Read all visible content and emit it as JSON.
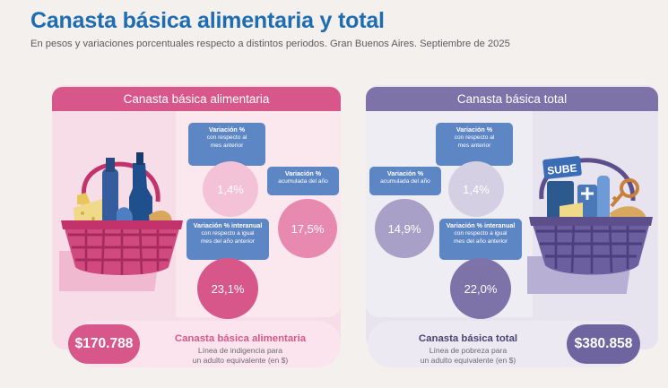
{
  "title": "Canasta básica alimentaria y total",
  "subtitle": "En pesos y variaciones porcentuales respecto a distintos periodos. Gran Buenos Aires. Septiembre de 2025",
  "colors": {
    "title_blue": "#1e6db3",
    "cba_pink": "#d7578a",
    "cba_light": "#f7dde8",
    "cbt_purple": "#7d73a8",
    "cbt_light": "#e7e3ef",
    "box_blue": "#5d86c4"
  },
  "cba": {
    "header": "Canasta básica alimentaria",
    "var_mensual": {
      "title": "Variación %",
      "sub_1": "con respecto al",
      "sub_2": "mes anterior",
      "value": "1,4%"
    },
    "var_acumulada": {
      "title": "Variación %",
      "sub_1": "acumulada del año",
      "value": "17,5%"
    },
    "var_interanual": {
      "title": "Variación % interanual",
      "sub_1": "con respecto a igual",
      "sub_2": "mes del año anterior",
      "value": "23,1%"
    },
    "amount": "$170.788",
    "bar_title": "Canasta básica alimentaria",
    "bar_desc_1": "Línea de indigencia para",
    "bar_desc_2": "un adulto equivalente (en $)"
  },
  "cbt": {
    "header": "Canasta básica total",
    "var_mensual": {
      "title": "Variación %",
      "sub_1": "con respecto al",
      "sub_2": "mes anterior",
      "value": "1,4%"
    },
    "var_acumulada": {
      "title": "Variación %",
      "sub_1": "acumulada del año",
      "value": "14,9%"
    },
    "var_interanual": {
      "title": "Variación % interanual",
      "sub_1": "con respecto a igual",
      "sub_2": "mes del año anterior",
      "value": "22,0%"
    },
    "amount": "$380.858",
    "bar_title": "Canasta básica total",
    "bar_desc_1": "Línea de pobreza para",
    "bar_desc_2": "un adulto equivalente (en $)",
    "card_text": "SUBE"
  }
}
